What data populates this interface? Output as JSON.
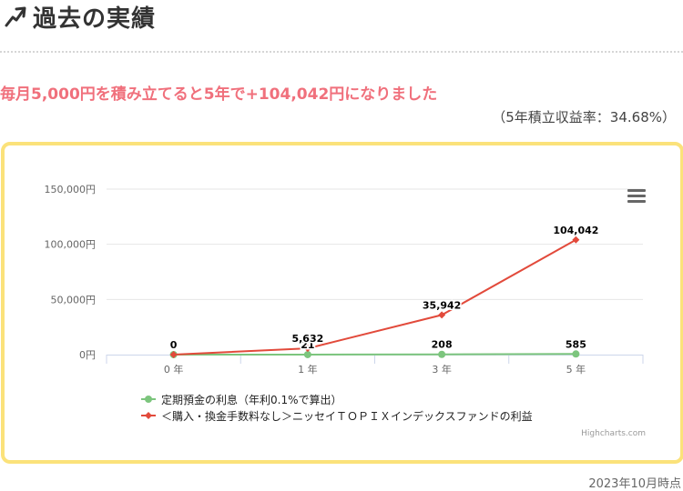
{
  "header": {
    "title": "過去の実績",
    "icon": "trend-up-arrow-icon"
  },
  "headline": "毎月5,000円を積み立てると5年で+104,042円になりました",
  "rate_text": "（5年積立収益率：34.68%）",
  "as_of": "2023年10月時点",
  "credits": "Highcharts.com",
  "menu_icon": "hamburger-menu-icon",
  "colors": {
    "headline": "#f0707c",
    "card_border": "#fbe27a",
    "series_deposit": "#7cc57d",
    "series_fund": "#e24a3b"
  },
  "chart_data": {
    "type": "line",
    "categories": [
      "0 年",
      "1 年",
      "3 年",
      "5 年"
    ],
    "y_ticks": [
      "0円",
      "50,000円",
      "100,000円",
      "150,000円"
    ],
    "ylim": [
      0,
      150000
    ],
    "grid": true,
    "legend_position": "bottom-left",
    "series": [
      {
        "name": "定期預金の利息（年利0.1%で算出）",
        "color": "#7cc57d",
        "marker": "circle",
        "values": [
          0,
          21,
          208,
          585
        ],
        "labels": [
          "",
          "21",
          "208",
          "585"
        ]
      },
      {
        "name": "＜購入・換金手数料なし＞ニッセイＴＯＰＩＸインデックスファンドの利益",
        "color": "#e24a3b",
        "marker": "diamond",
        "values": [
          0,
          5632,
          35942,
          104042
        ],
        "labels": [
          "0",
          "5,632",
          "35,942",
          "104,042"
        ]
      }
    ]
  }
}
